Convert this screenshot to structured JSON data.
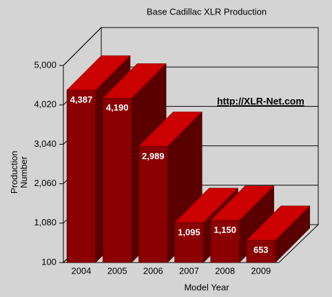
{
  "chart_data": {
    "type": "bar3d",
    "title": "Base Cadillac XLR Production",
    "xlabel": "Model Year",
    "ylabel": "Production Number",
    "annotation": "http://XLR-Net.com",
    "categories": [
      "2004",
      "2005",
      "2006",
      "2007",
      "2008",
      "2009"
    ],
    "values": [
      4387,
      4190,
      2989,
      1095,
      1150,
      653
    ],
    "value_labels": [
      "4,387",
      "4,190",
      "2,989",
      "1,095",
      "1,150",
      "653"
    ],
    "color": "#8b0000",
    "ylim": [
      100,
      5000
    ],
    "yticks": [
      100,
      {
        "value": 1080,
        "label": "1,080"
      },
      {
        "value": 2060,
        "label": "2,060"
      },
      {
        "value": 3040,
        "label": "3,040"
      },
      {
        "value": 4020,
        "label": "4,020"
      },
      {
        "value": 5000,
        "label": "5,000"
      }
    ],
    "grid": true
  }
}
